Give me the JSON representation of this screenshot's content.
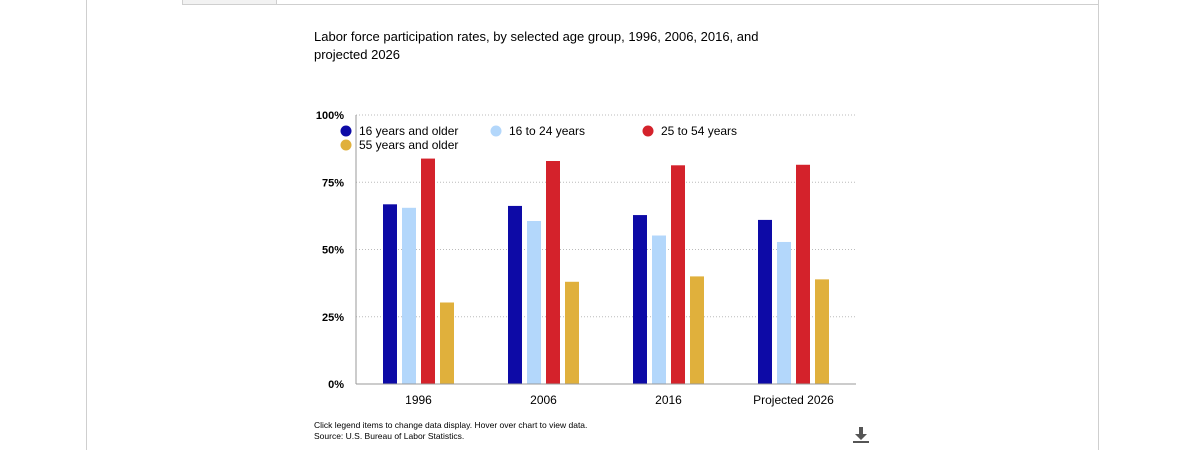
{
  "title": "Labor force participation rates, by selected age group, 1996, 2006, 2016, and projected 2026",
  "note_line1": "Click legend items to change data display. Hover over chart to view data.",
  "note_line2": "Source: U.S. Bureau of Labor Statistics.",
  "download_icon": "download-icon",
  "chart_data": {
    "type": "bar",
    "title": "Labor force participation rates, by selected age group, 1996, 2006, 2016, and projected 2026",
    "categories": [
      "1996",
      "2006",
      "2016",
      "Projected 2026"
    ],
    "ylim": [
      0,
      100
    ],
    "y_ticks": [
      0,
      25,
      50,
      75,
      100
    ],
    "y_tick_labels": [
      "0%",
      "25%",
      "50%",
      "75%",
      "100%"
    ],
    "grid": true,
    "legend_placement": "top",
    "series": [
      {
        "name": "16 years and older",
        "color": "#0d0aa6",
        "values": [
          66.8,
          66.2,
          62.8,
          61.0
        ]
      },
      {
        "name": "16 to 24 years",
        "color": "#b3d7fb",
        "values": [
          65.5,
          60.6,
          55.2,
          52.8
        ]
      },
      {
        "name": "25 to 54 years",
        "color": "#d4222b",
        "values": [
          83.8,
          82.9,
          81.3,
          81.5
        ]
      },
      {
        "name": "55 years and older",
        "color": "#e0b03c",
        "values": [
          30.3,
          38.0,
          40.0,
          38.9
        ]
      }
    ]
  }
}
